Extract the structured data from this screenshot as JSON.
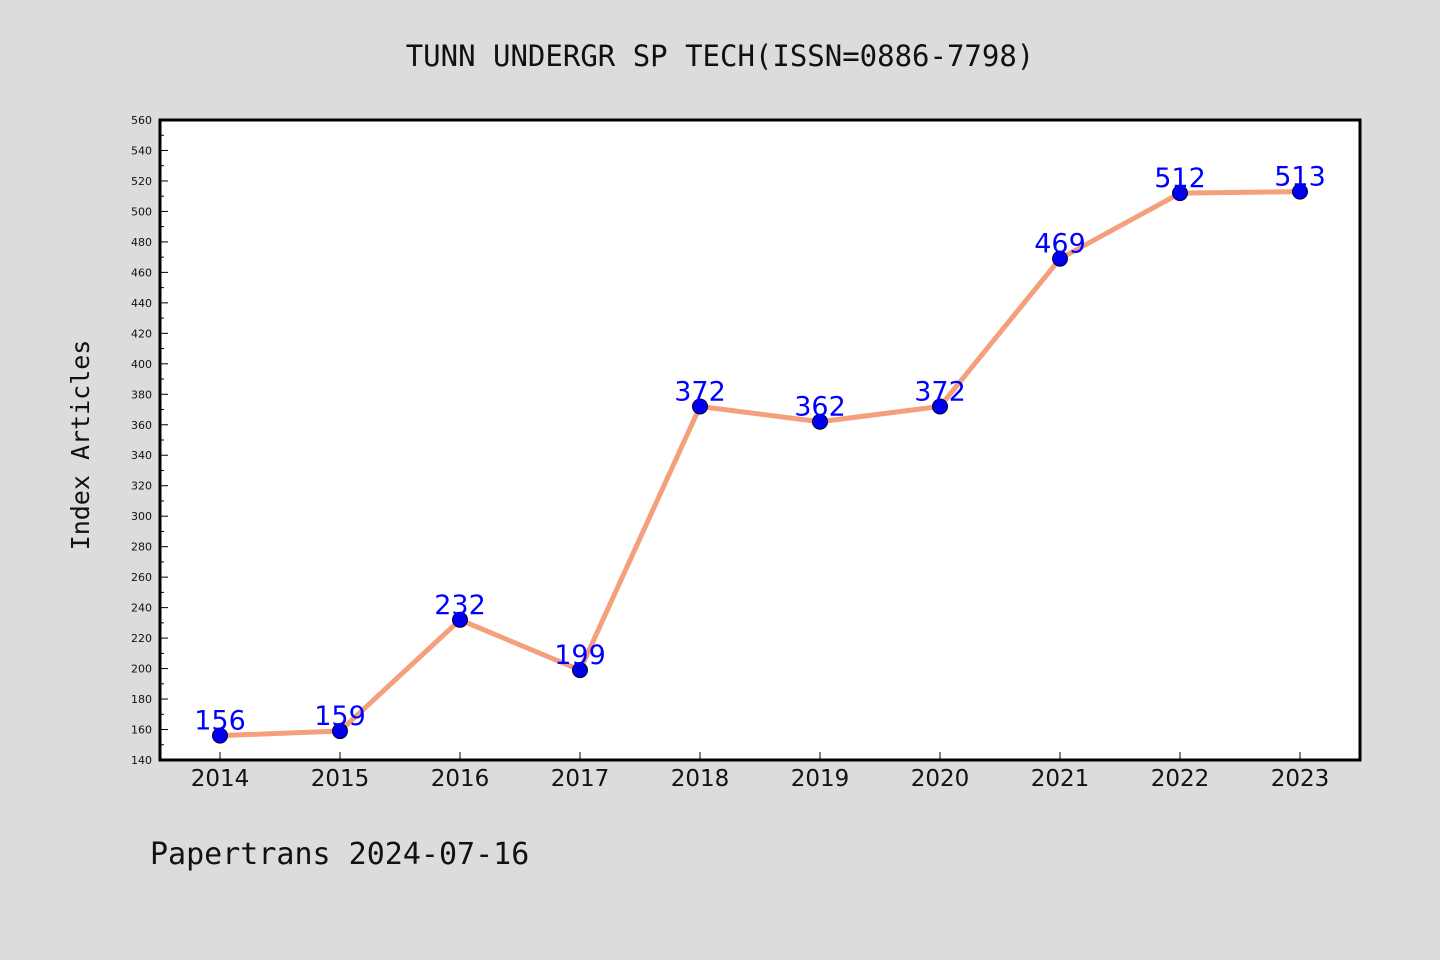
{
  "chart_data": {
    "type": "line",
    "title": "TUNN UNDERGR SP TECH(ISSN=0886-7798)",
    "xlabel": "",
    "ylabel": "Index Articles",
    "categories": [
      "2014",
      "2015",
      "2016",
      "2017",
      "2018",
      "2019",
      "2020",
      "2021",
      "2022",
      "2023"
    ],
    "series": [
      {
        "values": [
          156,
          159,
          232,
          199,
          372,
          362,
          372,
          469,
          512,
          513
        ],
        "data_labels": [
          "156",
          "159",
          "232",
          "199",
          "372",
          "362",
          "372",
          "469",
          "512",
          "513"
        ]
      }
    ],
    "ylim": [
      140,
      560
    ],
    "yticks": [
      "140",
      "160",
      "180",
      "200",
      "220",
      "240",
      "260",
      "280",
      "300",
      "320",
      "340",
      "360",
      "380",
      "400",
      "420",
      "440",
      "460",
      "480",
      "500",
      "520",
      "540",
      "560"
    ],
    "grid": false,
    "legend": "none",
    "colors": {
      "line": "#f4a07c",
      "marker": "#0000ee",
      "label": "#0000ff",
      "background": "#dcdcdc",
      "plot": "#ffffff"
    }
  },
  "footer": {
    "text": "Papertrans 2024-07-16"
  }
}
